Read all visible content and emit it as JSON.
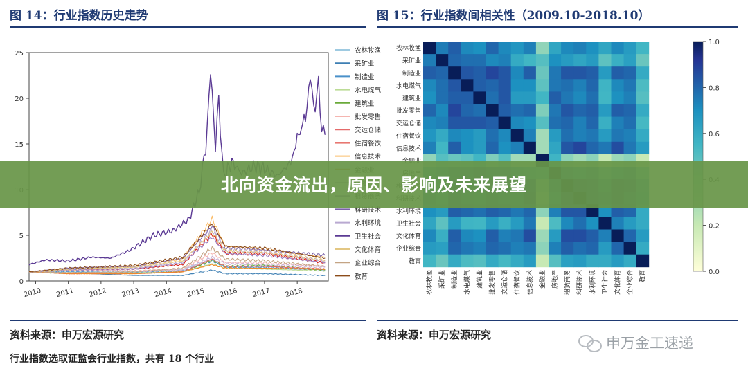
{
  "figure14": {
    "title": "图 14：行业指数历史走势",
    "source": "资料来源：申万宏源研究",
    "note": "行业指数选取证监会行业指数，共有 18 个行业"
  },
  "figure15": {
    "title": "图 15：行业指数间相关性（2009.10-2018.10）",
    "source": "资料来源：申万宏源研究"
  },
  "overlay_title": "北向资金流出，原因、影响及未来展望",
  "watermark": "申万金工速递",
  "chart_data": [
    {
      "type": "line",
      "x_ticks": [
        "2010",
        "2011",
        "2012",
        "2013",
        "2014",
        "2015",
        "2016",
        "2017",
        "2018"
      ],
      "ylim": [
        0,
        25
      ],
      "y_ticks": [
        0,
        5,
        10,
        15,
        20,
        25
      ],
      "legend_position": "right",
      "x_start": 2009.8,
      "x_end": 2018.85,
      "series": [
        {
          "name": "农林牧渔",
          "color": "#9ecae1",
          "points": [
            [
              2009.8,
              1.0
            ],
            [
              2011,
              1.1
            ],
            [
              2013,
              1.0
            ],
            [
              2014.5,
              1.3
            ],
            [
              2015.4,
              2.4
            ],
            [
              2015.8,
              1.6
            ],
            [
              2017,
              1.4
            ],
            [
              2018.85,
              1.2
            ]
          ]
        },
        {
          "name": "采矿业",
          "color": "#3d7fb3",
          "points": [
            [
              2009.8,
              1.0
            ],
            [
              2011,
              0.9
            ],
            [
              2013,
              0.6
            ],
            [
              2014.5,
              0.6
            ],
            [
              2015.4,
              1.2
            ],
            [
              2015.8,
              0.8
            ],
            [
              2017,
              0.8
            ],
            [
              2018.85,
              0.6
            ]
          ]
        },
        {
          "name": "制造业",
          "color": "#4a90c9",
          "points": [
            [
              2009.8,
              1.0
            ],
            [
              2011,
              1.0
            ],
            [
              2013,
              0.9
            ],
            [
              2014.5,
              1.1
            ],
            [
              2015.4,
              2.2
            ],
            [
              2015.8,
              1.5
            ],
            [
              2017,
              1.5
            ],
            [
              2018.85,
              1.2
            ]
          ]
        },
        {
          "name": "水电煤气",
          "color": "#bcdc96",
          "points": [
            [
              2009.8,
              1.0
            ],
            [
              2011,
              0.9
            ],
            [
              2013,
              0.9
            ],
            [
              2014.5,
              1.0
            ],
            [
              2015.4,
              1.9
            ],
            [
              2015.8,
              1.4
            ],
            [
              2017,
              1.3
            ],
            [
              2018.85,
              1.1
            ]
          ]
        },
        {
          "name": "建筑业",
          "color": "#6aaa3a",
          "points": [
            [
              2009.8,
              1.0
            ],
            [
              2011,
              0.8
            ],
            [
              2013,
              0.8
            ],
            [
              2014.5,
              1.0
            ],
            [
              2015.4,
              2.3
            ],
            [
              2015.8,
              1.6
            ],
            [
              2017,
              1.7
            ],
            [
              2018.85,
              1.2
            ]
          ]
        },
        {
          "name": "批发零售",
          "color": "#f5b5b0",
          "points": [
            [
              2009.8,
              1.0
            ],
            [
              2011,
              1.2
            ],
            [
              2013,
              1.1
            ],
            [
              2014.5,
              1.3
            ],
            [
              2015.4,
              3.1
            ],
            [
              2015.8,
              2.0
            ],
            [
              2017,
              2.0
            ],
            [
              2018.85,
              1.6
            ]
          ]
        },
        {
          "name": "交运仓储",
          "color": "#e46a6a",
          "points": [
            [
              2009.8,
              1.0
            ],
            [
              2011,
              0.8
            ],
            [
              2013,
              0.8
            ],
            [
              2014.5,
              1.0
            ],
            [
              2015.4,
              2.4
            ],
            [
              2015.8,
              1.6
            ],
            [
              2017,
              1.6
            ],
            [
              2018.85,
              1.3
            ]
          ]
        },
        {
          "name": "住宿餐饮",
          "color": "#d9261c",
          "points": [
            [
              2009.8,
              1.0
            ],
            [
              2011,
              1.3
            ],
            [
              2013,
              1.3
            ],
            [
              2014.5,
              1.8
            ],
            [
              2015.4,
              5.2
            ],
            [
              2015.8,
              3.0
            ],
            [
              2017,
              3.0
            ],
            [
              2018.85,
              2.0
            ]
          ]
        },
        {
          "name": "信息技术",
          "color": "#fbbf6e",
          "points": [
            [
              2009.8,
              1.0
            ],
            [
              2011,
              1.2
            ],
            [
              2013,
              1.6
            ],
            [
              2014.5,
              2.4
            ],
            [
              2015.4,
              6.8
            ],
            [
              2015.8,
              3.8
            ],
            [
              2017,
              3.4
            ],
            [
              2018.85,
              2.6
            ]
          ]
        },
        {
          "name": "金融业",
          "color": "#f08a24",
          "points": [
            [
              2009.8,
              1.0
            ],
            [
              2011,
              0.8
            ],
            [
              2013,
              0.8
            ],
            [
              2014.5,
              1.0
            ],
            [
              2015.4,
              1.8
            ],
            [
              2015.8,
              1.4
            ],
            [
              2017,
              1.4
            ],
            [
              2018.85,
              1.3
            ]
          ]
        },
        {
          "name": "房地产",
          "color": "#cab2d6",
          "points": [
            [
              2009.8,
              1.0
            ],
            [
              2011,
              0.9
            ],
            [
              2013,
              1.0
            ],
            [
              2014.5,
              1.2
            ],
            [
              2015.4,
              2.6
            ],
            [
              2015.8,
              1.9
            ],
            [
              2017,
              1.8
            ],
            [
              2018.85,
              1.5
            ]
          ]
        },
        {
          "name": "租赁商务",
          "color": "#9b7fbf",
          "points": [
            [
              2009.8,
              1.0
            ],
            [
              2011,
              1.2
            ],
            [
              2013,
              1.3
            ],
            [
              2014.5,
              2.0
            ],
            [
              2015.4,
              4.8
            ],
            [
              2015.8,
              3.0
            ],
            [
              2017,
              2.8
            ],
            [
              2018.85,
              2.0
            ]
          ]
        },
        {
          "name": "科研技术",
          "color": "#7b62a8",
          "points": [
            [
              2009.8,
              1.0
            ],
            [
              2011,
              1.4
            ],
            [
              2013,
              1.6
            ],
            [
              2014.5,
              2.5
            ],
            [
              2015.4,
              6.0
            ],
            [
              2015.8,
              3.6
            ],
            [
              2017,
              3.4
            ],
            [
              2018.85,
              2.8
            ]
          ]
        },
        {
          "name": "水利环境",
          "color": "#b9a9d1",
          "points": [
            [
              2009.8,
              1.0
            ],
            [
              2011,
              1.3
            ],
            [
              2013,
              1.4
            ],
            [
              2014.5,
              2.0
            ],
            [
              2015.4,
              5.6
            ],
            [
              2015.8,
              3.4
            ],
            [
              2017,
              3.2
            ],
            [
              2018.85,
              2.2
            ]
          ]
        },
        {
          "name": "卫生社会",
          "color": "#5b3a94",
          "points": [
            [
              2009.8,
              1.8
            ],
            [
              2010.3,
              2.3
            ],
            [
              2011,
              2.2
            ],
            [
              2011.7,
              2.6
            ],
            [
              2012.3,
              2.5
            ],
            [
              2012.9,
              3.4
            ],
            [
              2013.6,
              5.0
            ],
            [
              2014.2,
              5.5
            ],
            [
              2014.7,
              6.8
            ],
            [
              2015.0,
              9.8
            ],
            [
              2015.2,
              14.5
            ],
            [
              2015.35,
              22.8
            ],
            [
              2015.5,
              15.0
            ],
            [
              2015.6,
              19.5
            ],
            [
              2015.75,
              11.5
            ],
            [
              2016.0,
              13.0
            ],
            [
              2016.3,
              11.8
            ],
            [
              2016.7,
              12.6
            ],
            [
              2017.0,
              12.3
            ],
            [
              2017.4,
              11.5
            ],
            [
              2017.8,
              13.0
            ],
            [
              2018.0,
              15.5
            ],
            [
              2018.25,
              18.0
            ],
            [
              2018.4,
              22.3
            ],
            [
              2018.5,
              19.0
            ],
            [
              2018.65,
              21.0
            ],
            [
              2018.75,
              17.0
            ],
            [
              2018.85,
              16.0
            ]
          ]
        },
        {
          "name": "文化体育",
          "color": "#e3c783",
          "points": [
            [
              2009.8,
              1.0
            ],
            [
              2011,
              1.3
            ],
            [
              2013,
              1.5
            ],
            [
              2014.5,
              2.2
            ],
            [
              2015.4,
              5.4
            ],
            [
              2015.8,
              3.3
            ],
            [
              2017,
              3.1
            ],
            [
              2018.85,
              2.3
            ]
          ]
        },
        {
          "name": "企业综合",
          "color": "#c4a484",
          "points": [
            [
              2009.8,
              1.0
            ],
            [
              2011,
              0.9
            ],
            [
              2013,
              1.0
            ],
            [
              2014.5,
              1.4
            ],
            [
              2015.4,
              3.6
            ],
            [
              2015.8,
              2.4
            ],
            [
              2017,
              2.2
            ],
            [
              2018.85,
              1.6
            ]
          ]
        },
        {
          "name": "教育",
          "color": "#8c4c1a",
          "points": [
            [
              2009.8,
              1.0
            ],
            [
              2011,
              1.4
            ],
            [
              2013,
              1.7
            ],
            [
              2014.5,
              2.6
            ],
            [
              2015.4,
              6.3
            ],
            [
              2015.8,
              3.8
            ],
            [
              2017,
              3.6
            ],
            [
              2018.85,
              2.5
            ]
          ]
        }
      ]
    },
    {
      "type": "heatmap",
      "labels": [
        "农林牧渔",
        "采矿业",
        "制造业",
        "水电煤气",
        "建筑业",
        "批发零售",
        "交运仓储",
        "住宿餐饮",
        "信息技术",
        "金融业",
        "房地产",
        "租赁商务",
        "科研技术",
        "水利环境",
        "卫生社会",
        "文化体育",
        "企业综合",
        "教育"
      ],
      "colorbar_ticks": [
        0.0,
        0.2,
        0.4,
        0.6,
        0.8,
        1.0
      ],
      "colorbar_range": [
        0.0,
        1.0
      ],
      "values": [
        [
          1.0,
          0.75,
          0.82,
          0.72,
          0.7,
          0.8,
          0.72,
          0.68,
          0.74,
          0.35,
          0.62,
          0.72,
          0.74,
          0.7,
          0.62,
          0.72,
          0.66,
          0.55
        ],
        [
          0.75,
          1.0,
          0.8,
          0.78,
          0.78,
          0.72,
          0.74,
          0.6,
          0.55,
          0.5,
          0.7,
          0.66,
          0.62,
          0.66,
          0.48,
          0.58,
          0.64,
          0.45
        ],
        [
          0.82,
          0.8,
          1.0,
          0.84,
          0.82,
          0.88,
          0.84,
          0.72,
          0.82,
          0.45,
          0.76,
          0.84,
          0.84,
          0.82,
          0.66,
          0.82,
          0.8,
          0.6
        ],
        [
          0.72,
          0.78,
          0.84,
          1.0,
          0.82,
          0.8,
          0.84,
          0.7,
          0.7,
          0.48,
          0.76,
          0.78,
          0.74,
          0.8,
          0.56,
          0.72,
          0.76,
          0.52
        ],
        [
          0.7,
          0.78,
          0.82,
          0.82,
          1.0,
          0.78,
          0.84,
          0.66,
          0.66,
          0.55,
          0.82,
          0.76,
          0.72,
          0.78,
          0.55,
          0.7,
          0.74,
          0.5
        ],
        [
          0.8,
          0.72,
          0.88,
          0.8,
          0.78,
          1.0,
          0.82,
          0.78,
          0.8,
          0.4,
          0.76,
          0.84,
          0.8,
          0.82,
          0.66,
          0.82,
          0.8,
          0.6
        ],
        [
          0.72,
          0.74,
          0.84,
          0.84,
          0.84,
          0.82,
          1.0,
          0.72,
          0.7,
          0.5,
          0.78,
          0.8,
          0.74,
          0.8,
          0.58,
          0.74,
          0.78,
          0.54
        ],
        [
          0.68,
          0.6,
          0.72,
          0.7,
          0.66,
          0.78,
          0.72,
          1.0,
          0.74,
          0.3,
          0.66,
          0.78,
          0.74,
          0.76,
          0.66,
          0.76,
          0.74,
          0.6
        ],
        [
          0.74,
          0.55,
          0.82,
          0.7,
          0.66,
          0.8,
          0.7,
          0.74,
          1.0,
          0.3,
          0.62,
          0.84,
          0.88,
          0.8,
          0.76,
          0.86,
          0.76,
          0.66
        ],
        [
          0.35,
          0.5,
          0.45,
          0.48,
          0.55,
          0.4,
          0.5,
          0.3,
          0.3,
          1.0,
          0.56,
          0.36,
          0.3,
          0.36,
          0.2,
          0.32,
          0.36,
          0.2
        ],
        [
          0.62,
          0.7,
          0.76,
          0.76,
          0.82,
          0.76,
          0.78,
          0.66,
          0.62,
          0.56,
          1.0,
          0.74,
          0.66,
          0.74,
          0.52,
          0.66,
          0.74,
          0.5
        ],
        [
          0.72,
          0.66,
          0.84,
          0.78,
          0.76,
          0.84,
          0.8,
          0.78,
          0.84,
          0.36,
          0.74,
          1.0,
          0.86,
          0.84,
          0.72,
          0.86,
          0.82,
          0.64
        ],
        [
          0.74,
          0.62,
          0.84,
          0.74,
          0.72,
          0.8,
          0.74,
          0.74,
          0.88,
          0.3,
          0.66,
          0.86,
          1.0,
          0.84,
          0.78,
          0.86,
          0.78,
          0.66
        ],
        [
          0.7,
          0.66,
          0.82,
          0.8,
          0.78,
          0.82,
          0.8,
          0.76,
          0.8,
          0.36,
          0.74,
          0.84,
          0.84,
          1.0,
          0.7,
          0.82,
          0.8,
          0.6
        ],
        [
          0.62,
          0.48,
          0.66,
          0.56,
          0.55,
          0.66,
          0.58,
          0.66,
          0.76,
          0.2,
          0.52,
          0.72,
          0.78,
          0.7,
          1.0,
          0.74,
          0.66,
          0.6
        ],
        [
          0.72,
          0.58,
          0.82,
          0.72,
          0.7,
          0.82,
          0.74,
          0.76,
          0.86,
          0.32,
          0.66,
          0.86,
          0.86,
          0.82,
          0.74,
          1.0,
          0.8,
          0.66
        ],
        [
          0.66,
          0.64,
          0.8,
          0.76,
          0.74,
          0.8,
          0.78,
          0.74,
          0.76,
          0.36,
          0.74,
          0.82,
          0.78,
          0.8,
          0.66,
          0.8,
          1.0,
          0.6
        ],
        [
          0.55,
          0.45,
          0.6,
          0.52,
          0.5,
          0.6,
          0.54,
          0.6,
          0.66,
          0.2,
          0.5,
          0.64,
          0.66,
          0.6,
          0.6,
          0.66,
          0.6,
          1.0
        ]
      ]
    }
  ]
}
